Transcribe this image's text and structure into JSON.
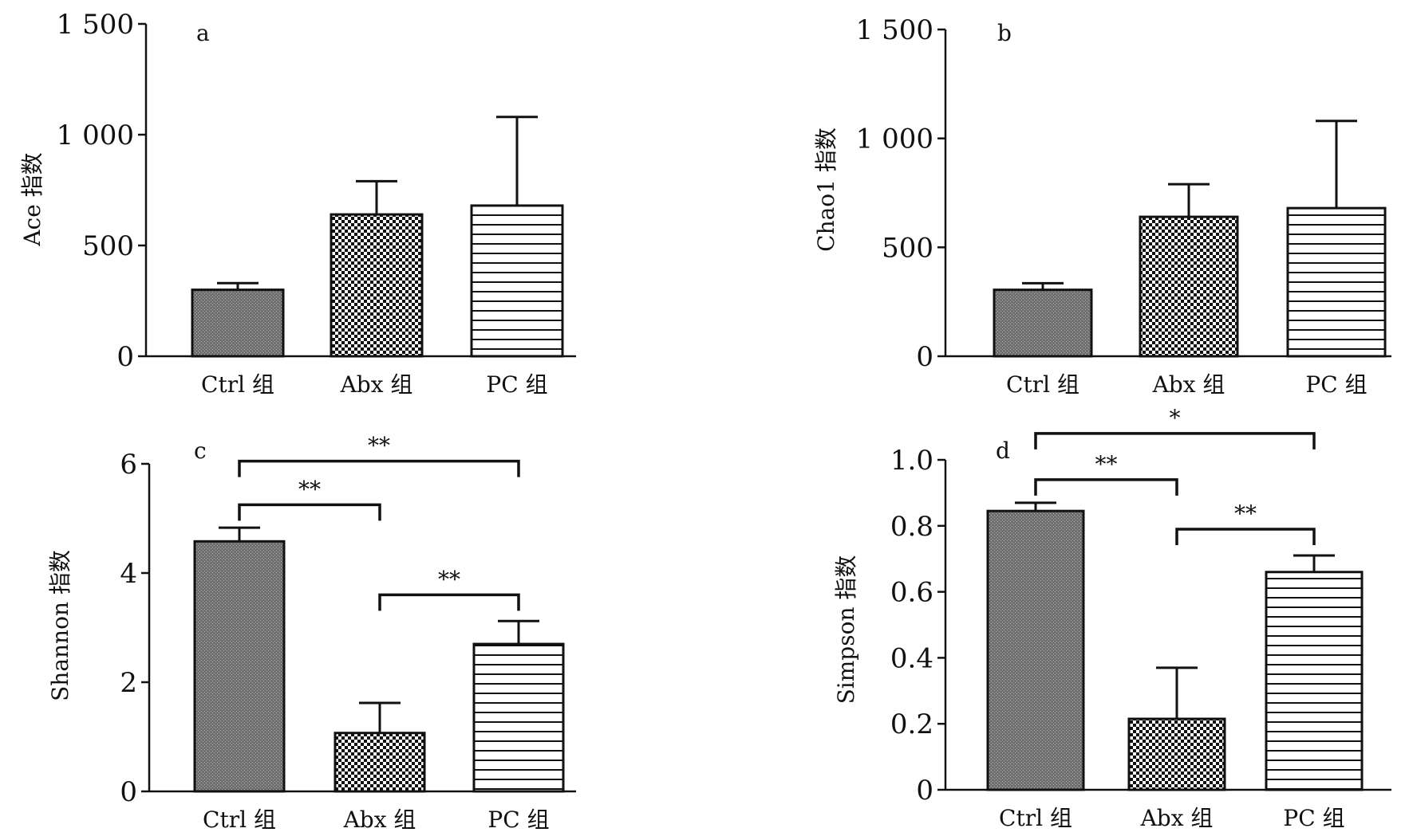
{
  "figure": {
    "colors": {
      "ink": "#111111",
      "background": "#ffffff",
      "bar_ctrl": "#6e6e6e"
    },
    "charts": [
      {
        "id": "a",
        "chart_data": {
          "type": "bar",
          "panel_label": "a",
          "ylabel": "Ace 指数",
          "categories": [
            "Ctrl 组",
            "Abx 组",
            "PC 组"
          ],
          "patterns": [
            "fine-gray",
            "checker",
            "horizontal-lines"
          ],
          "values": [
            300,
            640,
            680
          ],
          "errors": [
            30,
            150,
            400
          ],
          "ylim": [
            0,
            1500
          ],
          "yticks": [
            0,
            500,
            1000,
            1500
          ],
          "ytick_labels": [
            "0",
            "500",
            "1 000",
            "1 500"
          ],
          "significance": []
        }
      },
      {
        "id": "b",
        "chart_data": {
          "type": "bar",
          "panel_label": "b",
          "ylabel": "Chao1 指数",
          "categories": [
            "Ctrl 组",
            "Abx 组",
            "PC 组"
          ],
          "patterns": [
            "fine-gray",
            "checker",
            "horizontal-lines"
          ],
          "values": [
            305,
            640,
            680
          ],
          "errors": [
            30,
            150,
            400
          ],
          "ylim": [
            0,
            1500
          ],
          "yticks": [
            0,
            500,
            1000,
            1500
          ],
          "ytick_labels": [
            "0",
            "500",
            "1 000",
            "1 500"
          ],
          "significance": []
        }
      },
      {
        "id": "c",
        "chart_data": {
          "type": "bar",
          "panel_label": "c",
          "ylabel": "Shannon 指数",
          "categories": [
            "Ctrl 组",
            "Abx 组",
            "PC 组"
          ],
          "patterns": [
            "fine-gray",
            "checker",
            "horizontal-lines"
          ],
          "values": [
            4.58,
            1.07,
            2.7
          ],
          "errors": [
            0.25,
            0.55,
            0.42
          ],
          "ylim": [
            0,
            6
          ],
          "yticks": [
            0,
            2,
            4,
            6
          ],
          "ytick_labels": [
            "0",
            "2",
            "4",
            "6"
          ],
          "significance": [
            {
              "from": 0,
              "to": 1,
              "y": 5.25,
              "label": "**"
            },
            {
              "from": 0,
              "to": 2,
              "y": 6.05,
              "label": "**"
            },
            {
              "from": 1,
              "to": 2,
              "y": 3.6,
              "label": "**"
            }
          ]
        }
      },
      {
        "id": "d",
        "chart_data": {
          "type": "bar",
          "panel_label": "d",
          "ylabel": "Simpson 指数",
          "categories": [
            "Ctrl 组",
            "Abx 组",
            "PC 组"
          ],
          "patterns": [
            "fine-gray",
            "checker",
            "horizontal-lines"
          ],
          "values": [
            0.845,
            0.215,
            0.66
          ],
          "errors": [
            0.025,
            0.155,
            0.05
          ],
          "ylim": [
            0,
            1.0
          ],
          "yticks": [
            0,
            0.2,
            0.4,
            0.6,
            0.8,
            1.0
          ],
          "ytick_labels": [
            "0",
            "0.2",
            "0.4",
            "0.6",
            "0.8",
            "1.0"
          ],
          "significance": [
            {
              "from": 0,
              "to": 1,
              "y": 0.94,
              "label": "**"
            },
            {
              "from": 0,
              "to": 2,
              "y": 1.08,
              "label": "*"
            },
            {
              "from": 1,
              "to": 2,
              "y": 0.79,
              "label": "**"
            }
          ]
        }
      }
    ]
  }
}
